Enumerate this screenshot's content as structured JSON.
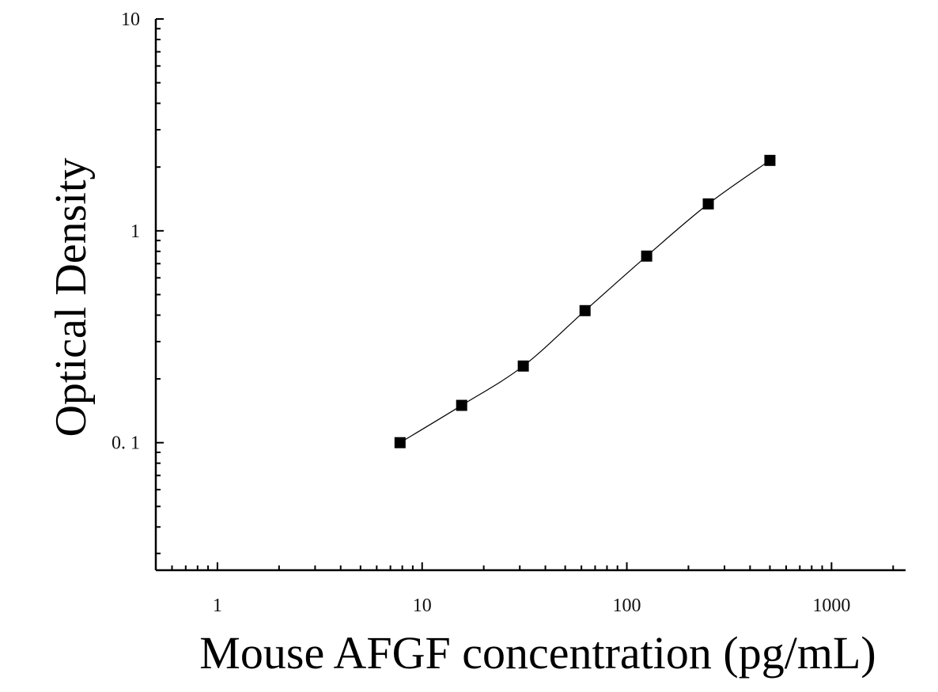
{
  "chart_data": {
    "type": "scatter",
    "xlabel": "Mouse AFGF concentration (pg/mL)",
    "ylabel": "Optical Density",
    "xscale": "log",
    "yscale": "log",
    "xlim": [
      0.5,
      2300
    ],
    "ylim": [
      0.025,
      10
    ],
    "x_ticks": [
      {
        "value": 1,
        "label": "1"
      },
      {
        "value": 10,
        "label": "10"
      },
      {
        "value": 100,
        "label": "100"
      },
      {
        "value": 1000,
        "label": "1000"
      }
    ],
    "y_ticks": [
      {
        "value": 0.1,
        "label": "0. 1"
      },
      {
        "value": 1,
        "label": "1"
      },
      {
        "value": 10,
        "label": "10"
      }
    ],
    "grid": false,
    "marker": "square",
    "marker_color": "#000000",
    "line_color": "#000000",
    "has_fit_curve": true,
    "series": [
      {
        "x": [
          7.8,
          15.6,
          31.2,
          62.5,
          125,
          250,
          500
        ],
        "y": [
          0.1,
          0.15,
          0.23,
          0.42,
          0.76,
          1.34,
          2.15
        ]
      }
    ]
  }
}
